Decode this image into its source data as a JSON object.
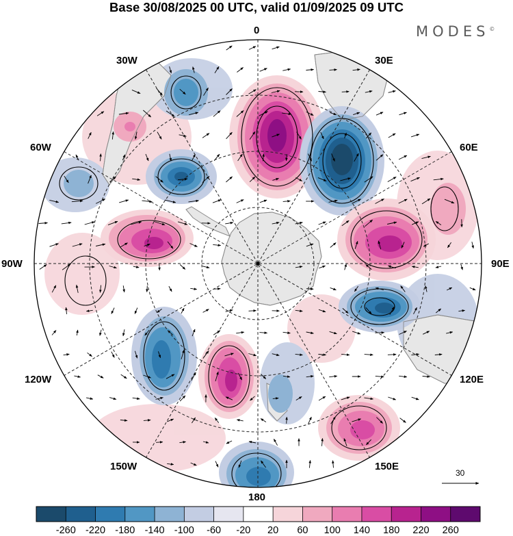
{
  "title": "Base 30/08/2025 00 UTC, valid 01/09/2025 09 UTC",
  "brand": "MODES",
  "brand_mark": "©",
  "longitude_labels": {
    "top": "0",
    "top_right": "30E",
    "right_upper": "60E",
    "right": "90E",
    "right_lower": "120E",
    "bottom_right": "150E",
    "bottom": "180",
    "bottom_left": "150W",
    "left_lower": "120W",
    "left": "90W",
    "left_upper": "60W",
    "top_left": "30W"
  },
  "reference_vector": {
    "label": "30"
  },
  "colorbar": {
    "labels": [
      "-260",
      "-220",
      "-180",
      "-140",
      "-100",
      "-60",
      "-20",
      "20",
      "60",
      "100",
      "140",
      "180",
      "220",
      "260"
    ],
    "colors": [
      "#1b4a6b",
      "#1f5f8e",
      "#2f7bb0",
      "#5197c4",
      "#8eb3d4",
      "#c3cde3",
      "#e6e6f0",
      "#ffffff",
      "#f6d5da",
      "#f0a9bf",
      "#e97db0",
      "#d94da4",
      "#b8238f",
      "#8e0f84",
      "#5e0a6e"
    ]
  },
  "colors": {
    "land": "#e7e7e7",
    "coast": "#8a8a8a",
    "grid": "#222222"
  }
}
